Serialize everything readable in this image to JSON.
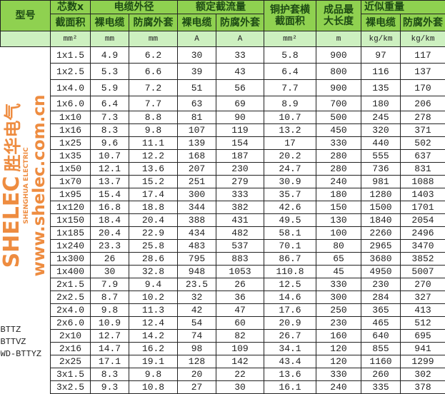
{
  "header": {
    "model": "型号",
    "cores_line1": "芯数x",
    "cores_line2": "截面积",
    "outer_diameter": "电缆外径",
    "rated_current": "额定截流量",
    "sheath_line1": "铜护套横",
    "sheath_line2": "截面积",
    "length_line1": "成品最",
    "length_line2": "大长度",
    "weight": "近似重量",
    "bare": "裸电缆",
    "anticorrosion": "防腐外套"
  },
  "units": [
    "mm²",
    "mm",
    "mm",
    "A",
    "A",
    "mm²",
    "m",
    "kg/km",
    "kg/km"
  ],
  "models": [
    "BTTZ",
    "BTTVZ",
    "WD-BTTYZ"
  ],
  "rows": [
    [
      "1x1.5",
      "4.9",
      "6.2",
      "30",
      "33",
      "5.8",
      "900",
      "97",
      "117"
    ],
    [
      "1x2.5",
      "5.3",
      "6.6",
      "39",
      "43",
      "6.4",
      "800",
      "116",
      "137"
    ],
    [
      "1x4.0",
      "5.9",
      "7.2",
      "51",
      "56",
      "7.7",
      "900",
      "135",
      "170"
    ],
    [
      "1x6.0",
      "6.4",
      "7.7",
      "63",
      "69",
      "8.9",
      "700",
      "180",
      "206"
    ],
    [
      "1x10",
      "7.3",
      "8.8",
      "81",
      "90",
      "10.7",
      "500",
      "245",
      "278"
    ],
    [
      "1x16",
      "8.3",
      "9.8",
      "107",
      "119",
      "13.2",
      "450",
      "320",
      "371"
    ],
    [
      "1x25",
      "9.6",
      "11.1",
      "139",
      "154",
      "17",
      "330",
      "440",
      "502"
    ],
    [
      "1x35",
      "10.7",
      "12.2",
      "168",
      "187",
      "20.2",
      "280",
      "555",
      "637"
    ],
    [
      "1x50",
      "12.1",
      "13.6",
      "207",
      "230",
      "24.7",
      "280",
      "736",
      "831"
    ],
    [
      "1x70",
      "13.7",
      "15.2",
      "251",
      "279",
      "30.9",
      "240",
      "981",
      "1088"
    ],
    [
      "1x95",
      "15.4",
      "17.4",
      "300",
      "333",
      "35.7",
      "180",
      "1280",
      "1403"
    ],
    [
      "1x120",
      "16.8",
      "18.8",
      "344",
      "382",
      "42.6",
      "150",
      "1500",
      "1701"
    ],
    [
      "1x150",
      "18.4",
      "20.4",
      "388",
      "431",
      "49.5",
      "130",
      "1840",
      "2054"
    ],
    [
      "1x185",
      "20.4",
      "22.9",
      "434",
      "482",
      "58.1",
      "100",
      "2260",
      "2496"
    ],
    [
      "1x240",
      "23.3",
      "25.8",
      "483",
      "537",
      "70.1",
      "80",
      "2965",
      "3470"
    ],
    [
      "1x300",
      "26",
      "28.6",
      "795",
      "883",
      "86.7",
      "65",
      "3680",
      "3852"
    ],
    [
      "1x400",
      "30",
      "32.8",
      "948",
      "1053",
      "110.8",
      "45",
      "4950",
      "5007"
    ],
    [
      "2x1.5",
      "7.9",
      "9.4",
      "23.5",
      "26",
      "12.5",
      "330",
      "230",
      "270"
    ],
    [
      "2x2.5",
      "8.7",
      "10.2",
      "32",
      "36",
      "14.6",
      "300",
      "284",
      "327"
    ],
    [
      "2x4.0",
      "9.8",
      "11.3",
      "42",
      "47",
      "17.6",
      "250",
      "365",
      "413"
    ],
    [
      "2x6.0",
      "10.9",
      "12.4",
      "54",
      "60",
      "20.9",
      "230",
      "465",
      "512"
    ],
    [
      "2x10",
      "12.7",
      "14.2",
      "74",
      "82",
      "26.7",
      "160",
      "640",
      "695"
    ],
    [
      "2x16",
      "14.7",
      "16.2",
      "98",
      "109",
      "34.1",
      "120",
      "855",
      "941"
    ],
    [
      "2x25",
      "17.1",
      "19.1",
      "128",
      "142",
      "43.4",
      "120",
      "1160",
      "1299"
    ],
    [
      "3x1.5",
      "8.3",
      "9.8",
      "20",
      "22",
      "13.6",
      "330",
      "260",
      "302"
    ],
    [
      "3x2.5",
      "9.3",
      "10.8",
      "27",
      "30",
      "16.1",
      "240",
      "335",
      "378"
    ]
  ],
  "watermark": {
    "brand": "SHELEC",
    "brand_cn": "胜华电气",
    "brand_en": "SHENGHUA ELECTRIC",
    "url": "www.shelec.com.cn",
    "color": "#eb781e"
  },
  "colors": {
    "header_bg": "#8fd150",
    "units_bg": "#cdf0c0",
    "border": "#222222"
  }
}
